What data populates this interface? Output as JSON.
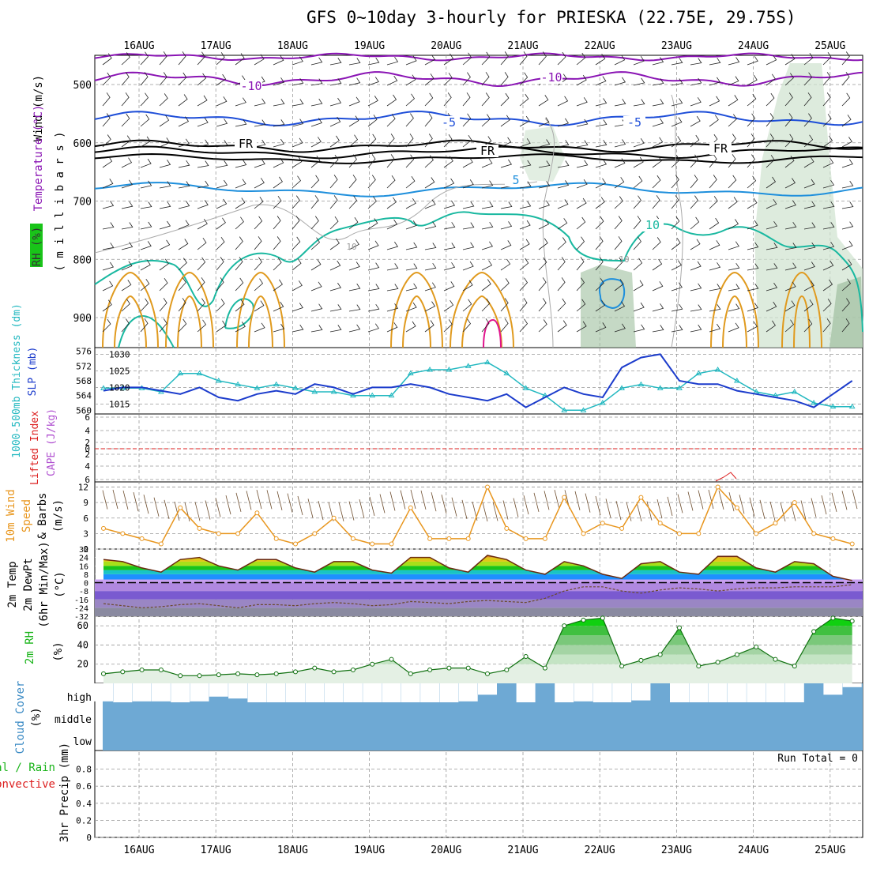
{
  "title": "GFS 0~10day 3-hourly for PRIESKA (22.75E, 29.75S)",
  "dates": [
    "16AUG",
    "17AUG",
    "18AUG",
    "19AUG",
    "20AUG",
    "21AUG",
    "22AUG",
    "23AUG",
    "24AUG",
    "25AUG"
  ],
  "colors": {
    "purple": "#8a14b4",
    "blue": "#1e4ed8",
    "black": "#000000",
    "lightblue": "#1e8fdc",
    "teal": "#19b8a0",
    "orange": "#e09a1e",
    "red": "#dc1e1e",
    "magenta": "#e0148c",
    "gray": "#9a9a9a",
    "slp": "#1c3ccc",
    "thick": "#22b8c0",
    "wind10": "#e8961e",
    "rh": "#19b419",
    "cloud": "#6ea9d4",
    "cloudGap": "#f4f0f6"
  },
  "panels": {
    "upper": {
      "y_label_wind": "Wind (m/s)",
      "y_label_temp": "Temperature (°C)",
      "y_label_rh": "RH (%)",
      "y_label_mb": "( m i l l i b a r s )",
      "ticks": [
        "500",
        "600",
        "700",
        "800",
        "900"
      ],
      "contour_labels": [
        {
          "text": "-10",
          "color": "purple"
        },
        {
          "text": "-10",
          "color": "purple"
        },
        {
          "text": "-5",
          "color": "blue"
        },
        {
          "text": "-5",
          "color": "blue"
        },
        {
          "text": "FR",
          "color": "black"
        },
        {
          "text": "FR",
          "color": "black"
        },
        {
          "text": "FR",
          "color": "black"
        },
        {
          "text": "5",
          "color": "lightblue"
        },
        {
          "text": "10",
          "color": "teal"
        },
        {
          "text": "10",
          "color": "gray"
        },
        {
          "text": "10",
          "color": "gray"
        }
      ]
    },
    "slp": {
      "label_thick": "1000-500mb Thickness (dm)",
      "label_slp": "SLP (mb)",
      "left_ticks": [
        "576",
        "572",
        "568",
        "564",
        "560"
      ],
      "right_ticks": [
        "1030",
        "1025",
        "1020",
        "1015"
      ]
    },
    "cape": {
      "label_li": "Lifted Index",
      "label_cape": "CAPE (J/kg)",
      "ticks": [
        "6",
        "4",
        "2",
        "0",
        "2",
        "4",
        "6"
      ]
    },
    "wind": {
      "label1": "10m Wind",
      "label2": "Speed",
      "label3": "& Barbs",
      "label4": "(m/s)",
      "ticks": [
        "12",
        "9",
        "6",
        "3",
        "0"
      ]
    },
    "temp": {
      "label1": "2m Temp",
      "label2": "2m DewPt",
      "label3": "(6hr Min/Max)",
      "label4": "(°C)",
      "ticks": [
        "32",
        "24",
        "16",
        "8",
        "0",
        "-8",
        "-16",
        "-24",
        "-32"
      ]
    },
    "rh": {
      "label1": "2m RH",
      "label2": "(%)",
      "ticks": [
        "60",
        "40",
        "20"
      ]
    },
    "cloud": {
      "label1": "Cloud Cover",
      "label2": "(%)",
      "levels": [
        "high",
        "middle",
        "low"
      ]
    },
    "precip": {
      "label1": "Total / Rain",
      "label2": "Convective",
      "label3": "3hr Precip (mm)",
      "run_total": "Run Total = 0",
      "ticks": [
        "0.8",
        "0.6",
        "0.4",
        "0.2",
        "0"
      ]
    }
  },
  "chart_data": [
    {
      "type": "line",
      "title": "SLP (mb)",
      "x_unit": "days from 15AUG 12Z",
      "ylim": [
        1012,
        1032
      ],
      "x": [
        0,
        0.25,
        0.5,
        0.75,
        1,
        1.25,
        1.5,
        1.75,
        2,
        2.25,
        2.5,
        2.75,
        3,
        3.25,
        3.5,
        3.75,
        4,
        4.25,
        4.5,
        4.75,
        5,
        5.25,
        5.5,
        5.75,
        6,
        6.25,
        6.5,
        6.75,
        7,
        7.25,
        7.5,
        7.75,
        8,
        8.25,
        8.5,
        8.75,
        9,
        9.25,
        9.5,
        9.75
      ],
      "values": [
        1019,
        1020,
        1020,
        1019,
        1018,
        1020,
        1017,
        1016,
        1018,
        1019,
        1018,
        1021,
        1020,
        1018,
        1020,
        1020,
        1021,
        1020,
        1018,
        1017,
        1016,
        1018,
        1014,
        1017,
        1020,
        1018,
        1017,
        1026,
        1029,
        1030,
        1022,
        1021,
        1021,
        1019,
        1018,
        1017,
        1016,
        1014,
        1018,
        1022
      ]
    },
    {
      "type": "line",
      "title": "1000-500mb Thickness (dm)",
      "ylim": [
        559,
        577
      ],
      "x": [
        0,
        0.25,
        0.5,
        0.75,
        1,
        1.25,
        1.5,
        1.75,
        2,
        2.25,
        2.5,
        2.75,
        3,
        3.25,
        3.5,
        3.75,
        4,
        4.25,
        4.5,
        4.75,
        5,
        5.25,
        5.5,
        5.75,
        6,
        6.25,
        6.5,
        6.75,
        7,
        7.25,
        7.5,
        7.75,
        8,
        8.25,
        8.5,
        8.75,
        9,
        9.25,
        9.5,
        9.75
      ],
      "values": [
        566,
        566,
        566,
        565,
        570,
        570,
        568,
        567,
        566,
        567,
        566,
        565,
        565,
        564,
        564,
        564,
        570,
        571,
        571,
        572,
        573,
        570,
        566,
        564,
        560,
        560,
        562,
        566,
        567,
        566,
        566,
        570,
        571,
        568,
        565,
        564,
        565,
        562,
        561,
        561
      ]
    },
    {
      "type": "line",
      "title": "10m Wind Speed (m/s)",
      "ylim": [
        0,
        13
      ],
      "x": [
        0,
        0.25,
        0.5,
        0.75,
        1,
        1.25,
        1.5,
        1.75,
        2,
        2.25,
        2.5,
        2.75,
        3,
        3.25,
        3.5,
        3.75,
        4,
        4.25,
        4.5,
        4.75,
        5,
        5.25,
        5.5,
        5.75,
        6,
        6.25,
        6.5,
        6.75,
        7,
        7.25,
        7.5,
        7.75,
        8,
        8.25,
        8.5,
        8.75,
        9,
        9.25,
        9.5,
        9.75
      ],
      "values": [
        4,
        3,
        2,
        1,
        8,
        4,
        3,
        3,
        7,
        2,
        1,
        3,
        6,
        2,
        1,
        1,
        8,
        2,
        2,
        2,
        12,
        4,
        2,
        2,
        10,
        3,
        5,
        4,
        10,
        5,
        3,
        3,
        12,
        8,
        3,
        5,
        9,
        3,
        2,
        1
      ]
    },
    {
      "type": "area",
      "title": "2m Temp (°C)",
      "ylim": [
        -32,
        32
      ],
      "x": [
        0,
        0.25,
        0.5,
        0.75,
        1,
        1.25,
        1.5,
        1.75,
        2,
        2.25,
        2.5,
        2.75,
        3,
        3.25,
        3.5,
        3.75,
        4,
        4.25,
        4.5,
        4.75,
        5,
        5.25,
        5.5,
        5.75,
        6,
        6.25,
        6.5,
        6.75,
        7,
        7.25,
        7.5,
        7.75,
        8,
        8.25,
        8.5,
        8.75,
        9,
        9.25,
        9.5,
        9.75
      ],
      "values": [
        22,
        20,
        14,
        10,
        22,
        24,
        16,
        12,
        22,
        22,
        14,
        10,
        20,
        20,
        12,
        9,
        24,
        24,
        14,
        10,
        26,
        22,
        12,
        8,
        20,
        16,
        8,
        4,
        18,
        20,
        10,
        8,
        25,
        25,
        14,
        10,
        20,
        18,
        6,
        2
      ],
      "dewpoint": [
        -20,
        -22,
        -24,
        -23,
        -21,
        -20,
        -22,
        -24,
        -21,
        -21,
        -22,
        -20,
        -19,
        -20,
        -22,
        -21,
        -18,
        -19,
        -20,
        -18,
        -17,
        -18,
        -19,
        -15,
        -8,
        -4,
        -4,
        -8,
        -10,
        -7,
        -5,
        -6,
        -8,
        -6,
        -5,
        -5,
        -4,
        -4,
        -4,
        -2
      ]
    },
    {
      "type": "area",
      "title": "2m RH (%)",
      "ylim": [
        0,
        70
      ],
      "x": [
        0,
        0.25,
        0.5,
        0.75,
        1,
        1.25,
        1.5,
        1.75,
        2,
        2.25,
        2.5,
        2.75,
        3,
        3.25,
        3.5,
        3.75,
        4,
        4.25,
        4.5,
        4.75,
        5,
        5.25,
        5.5,
        5.75,
        6,
        6.25,
        6.5,
        6.75,
        7,
        7.25,
        7.5,
        7.75,
        8,
        8.25,
        8.5,
        8.75,
        9,
        9.25,
        9.5,
        9.75
      ],
      "values": [
        10,
        12,
        14,
        14,
        8,
        8,
        9,
        10,
        9,
        10,
        12,
        16,
        12,
        14,
        20,
        25,
        10,
        14,
        16,
        16,
        10,
        14,
        28,
        16,
        60,
        66,
        68,
        18,
        24,
        30,
        58,
        18,
        22,
        30,
        38,
        25,
        18,
        54,
        68,
        65
      ]
    },
    {
      "type": "bar",
      "title": "High Cloud Cover (%)",
      "x": [
        0,
        0.25,
        0.5,
        0.75,
        1,
        1.25,
        1.5,
        1.75,
        2,
        2.25,
        2.5,
        2.75,
        3,
        3.25,
        3.5,
        3.75,
        4,
        4.25,
        4.5,
        4.75,
        5,
        5.25,
        5.5,
        5.75,
        6,
        6.25,
        6.5,
        6.75,
        7,
        7.25,
        7.5,
        7.75,
        8,
        8.25,
        8.5,
        8.75,
        9,
        9.25,
        9.5,
        9.75
      ],
      "values": [
        5,
        0,
        5,
        5,
        0,
        5,
        30,
        20,
        0,
        0,
        0,
        0,
        0,
        0,
        0,
        0,
        0,
        0,
        0,
        5,
        40,
        100,
        0,
        100,
        0,
        5,
        0,
        0,
        10,
        100,
        0,
        0,
        0,
        0,
        0,
        0,
        0,
        100,
        40,
        80
      ]
    }
  ]
}
